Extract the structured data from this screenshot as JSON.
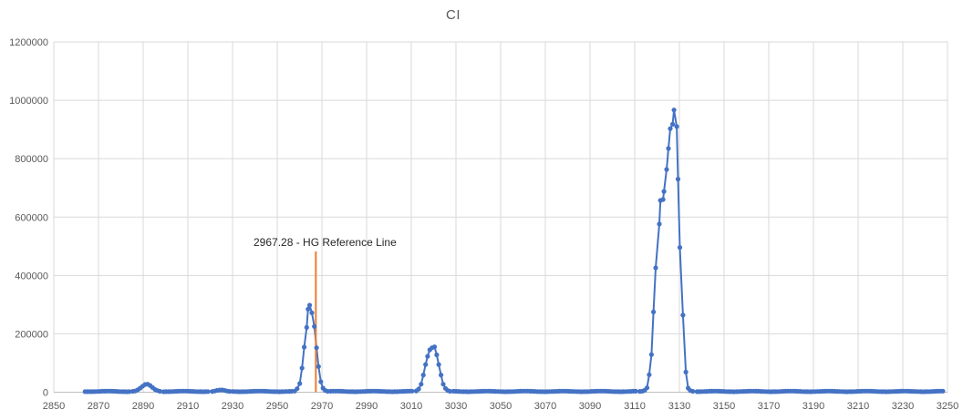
{
  "title": "CI",
  "colors": {
    "series": "#4472C4",
    "reference_line": "#ED7D31",
    "gridline": "#D9D9D9",
    "axis_line": "#BFBFBF",
    "axis_label": "#595959",
    "title_text": "#595959",
    "annotation_text": "#262626",
    "background": "#FFFFFF"
  },
  "chart_data": {
    "type": "line",
    "title": "CI",
    "xlabel": "",
    "ylabel": "",
    "legend": "none",
    "grid": "both",
    "marker": "circle",
    "x_axis": {
      "min": 2850,
      "max": 3250,
      "tick_step": 20,
      "ticks": [
        2850,
        2870,
        2890,
        2910,
        2930,
        2950,
        2970,
        2990,
        3010,
        3030,
        3050,
        3070,
        3090,
        3110,
        3130,
        3150,
        3170,
        3190,
        3210,
        3230,
        3250
      ]
    },
    "y_axis": {
      "min": 0,
      "max": 1200000,
      "tick_step": 200000,
      "ticks": [
        0,
        200000,
        400000,
        600000,
        800000,
        1000000,
        1200000
      ],
      "tick_labels": [
        "0",
        "200000",
        "400000",
        "600000",
        "800000",
        "1000000",
        "1200000"
      ]
    },
    "reference_line": {
      "x": 2967.28,
      "label": "2967.28 - HG Reference Line",
      "top_value": 482000,
      "color": "#ED7D31"
    },
    "key_points": [
      [
        2892.0,
        27500
      ],
      [
        2925.3,
        7800
      ],
      [
        2964.5,
        298000
      ],
      [
        3020.4,
        155400
      ],
      [
        3127.6,
        967000
      ]
    ],
    "series": [
      {
        "name": "CI",
        "color": "#4472C4",
        "data_x_start": 2864,
        "data_x_end": 3248,
        "baseline_step": 1.1,
        "baseline_level": 1700,
        "baseline_noise_amp": 2000,
        "feature_segments": [
          {
            "range": [
              2884.8,
              2898.1
            ],
            "points": [
              [
                2885.4,
                3000
              ],
              [
                2886.5,
                4500
              ],
              [
                2887.6,
                8000
              ],
              [
                2888.7,
                14000
              ],
              [
                2889.8,
                21000
              ],
              [
                2890.9,
                26500
              ],
              [
                2892.0,
                27500
              ],
              [
                2893.1,
                23000
              ],
              [
                2894.2,
                16000
              ],
              [
                2895.3,
                9500
              ],
              [
                2896.4,
                5500
              ],
              [
                2897.5,
                3200
              ]
            ]
          },
          {
            "range": [
              2920.3,
              2929.2
            ],
            "points": [
              [
                2920.9,
                2600
              ],
              [
                2922.0,
                4200
              ],
              [
                2923.1,
                6200
              ],
              [
                2924.2,
                7600
              ],
              [
                2925.3,
                7800
              ],
              [
                2926.4,
                6200
              ],
              [
                2927.5,
                4200
              ],
              [
                2928.6,
                2800
              ]
            ]
          },
          {
            "range": [
              2957.2,
              2973.2
            ],
            "points": [
              [
                2957.8,
                3800
              ],
              [
                2958.9,
                12000
              ],
              [
                2960.1,
                29600
              ],
              [
                2961.1,
                82700
              ],
              [
                2962.1,
                154500
              ],
              [
                2963.2,
                222000
              ],
              [
                2963.8,
                284600
              ],
              [
                2964.5,
                298000
              ],
              [
                2965.5,
                272000
              ],
              [
                2966.6,
                225300
              ],
              [
                2967.6,
                152300
              ],
              [
                2968.5,
                88000
              ],
              [
                2969.5,
                35900
              ],
              [
                2970.5,
                14000
              ],
              [
                2971.5,
                6000
              ],
              [
                2972.6,
                3200
              ]
            ]
          },
          {
            "range": [
              3011.6,
              3028.1
            ],
            "points": [
              [
                3012.2,
                4500
              ],
              [
                3013.3,
                11000
              ],
              [
                3014.4,
                27500
              ],
              [
                3015.4,
                59000
              ],
              [
                3016.4,
                95000
              ],
              [
                3017.3,
                123000
              ],
              [
                3018.3,
                145000
              ],
              [
                3019.3,
                152300
              ],
              [
                3020.4,
                155400
              ],
              [
                3021.4,
                128000
              ],
              [
                3022.3,
                95000
              ],
              [
                3023.3,
                59000
              ],
              [
                3024.3,
                27500
              ],
              [
                3025.3,
                13000
              ],
              [
                3026.3,
                6000
              ],
              [
                3027.4,
                3200
              ]
            ]
          },
          {
            "range": [
              3111.7,
              3136.6
            ],
            "points": [
              [
                3112.3,
                2800
              ],
              [
                3113.4,
                3400
              ],
              [
                3114.5,
                6500
              ],
              [
                3115.5,
                15000
              ],
              [
                3116.5,
                60000
              ],
              [
                3117.5,
                129000
              ],
              [
                3118.4,
                275000
              ],
              [
                3119.4,
                426000
              ],
              [
                3121.0,
                576000
              ],
              [
                3121.5,
                657000
              ],
              [
                3122.7,
                660000
              ],
              [
                3123.1,
                688000
              ],
              [
                3124.3,
                763000
              ],
              [
                3125.1,
                835000
              ],
              [
                3125.9,
                903000
              ],
              [
                3127.0,
                918000
              ],
              [
                3127.6,
                967000
              ],
              [
                3128.8,
                910000
              ],
              [
                3129.4,
                730000
              ],
              [
                3130.2,
                496000
              ],
              [
                3131.6,
                264000
              ],
              [
                3132.9,
                69000
              ],
              [
                3133.9,
                14000
              ],
              [
                3134.9,
                5500
              ],
              [
                3136.0,
                3000
              ]
            ]
          }
        ]
      }
    ]
  }
}
